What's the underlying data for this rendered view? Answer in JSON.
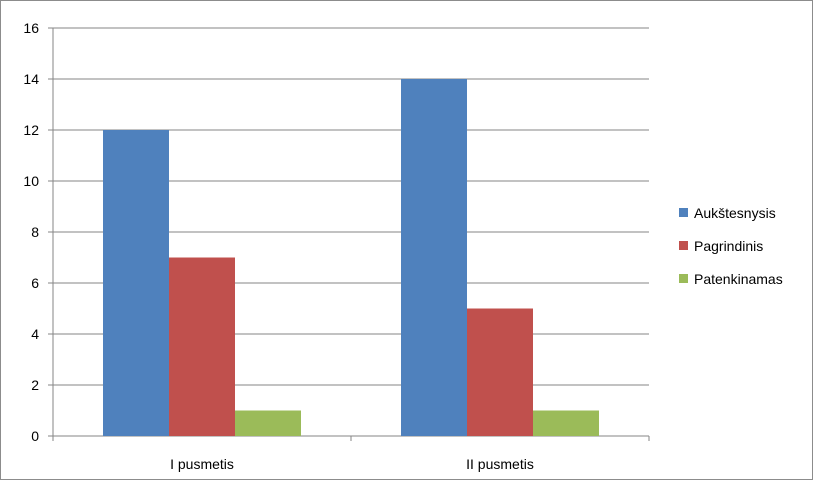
{
  "chart_data": {
    "type": "bar",
    "categories": [
      "I pusmetis",
      "II pusmetis"
    ],
    "series": [
      {
        "name": "Aukštesnysis",
        "values": [
          12,
          14
        ],
        "color": "#4F81BD"
      },
      {
        "name": "Pagrindinis",
        "values": [
          7,
          5
        ],
        "color": "#C0504D"
      },
      {
        "name": "Patenkinamas",
        "values": [
          1,
          1
        ],
        "color": "#9BBB59"
      }
    ],
    "ylim": [
      0,
      16
    ],
    "yticks": [
      0,
      2,
      4,
      6,
      8,
      10,
      12,
      14,
      16
    ],
    "ytick_labels": [
      "0",
      "2",
      "4",
      "6",
      "8",
      "10",
      "12",
      "14",
      "16"
    ],
    "grid": true,
    "legend_position": "right"
  }
}
